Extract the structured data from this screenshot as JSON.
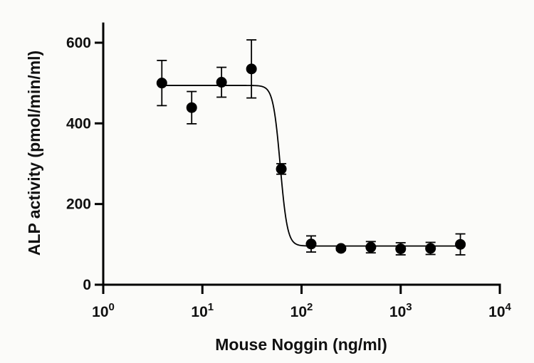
{
  "chart_data": {
    "type": "scatter",
    "xlabel": "Mouse Noggin (ng/ml)",
    "ylabel": "ALP activity (pmol/min/ml)",
    "xscale": "log",
    "xlim": [
      1,
      10000
    ],
    "ylim": [
      0,
      650
    ],
    "x_ticks": [
      1,
      10,
      100,
      1000,
      10000
    ],
    "x_tick_labels": [
      {
        "base": "10",
        "exp": "0"
      },
      {
        "base": "10",
        "exp": "1"
      },
      {
        "base": "10",
        "exp": "2"
      },
      {
        "base": "10",
        "exp": "3"
      },
      {
        "base": "10",
        "exp": "4"
      }
    ],
    "y_ticks": [
      0,
      200,
      400,
      600
    ],
    "y_tick_labels": [
      "0",
      "200",
      "400",
      "600"
    ],
    "grid": false,
    "colors": {
      "marker": "#000000",
      "line": "#000000"
    },
    "points": [
      {
        "x": 3.9,
        "y": 500,
        "err": 56
      },
      {
        "x": 7.8,
        "y": 439,
        "err": 40
      },
      {
        "x": 15.6,
        "y": 502,
        "err": 37
      },
      {
        "x": 31.25,
        "y": 535,
        "err": 72
      },
      {
        "x": 62.5,
        "y": 287,
        "err": 13
      },
      {
        "x": 125,
        "y": 101,
        "err": 20
      },
      {
        "x": 250,
        "y": 90,
        "err": 5
      },
      {
        "x": 500,
        "y": 93,
        "err": 14
      },
      {
        "x": 1000,
        "y": 89,
        "err": 15
      },
      {
        "x": 2000,
        "y": 90,
        "err": 15
      },
      {
        "x": 4000,
        "y": 100,
        "err": 26
      }
    ],
    "fit": {
      "model": "four-parameter logistic",
      "top": 494,
      "bottom": 96,
      "ec50": 61,
      "hill_slope": -12,
      "x_range": [
        3.9,
        4000
      ]
    }
  }
}
